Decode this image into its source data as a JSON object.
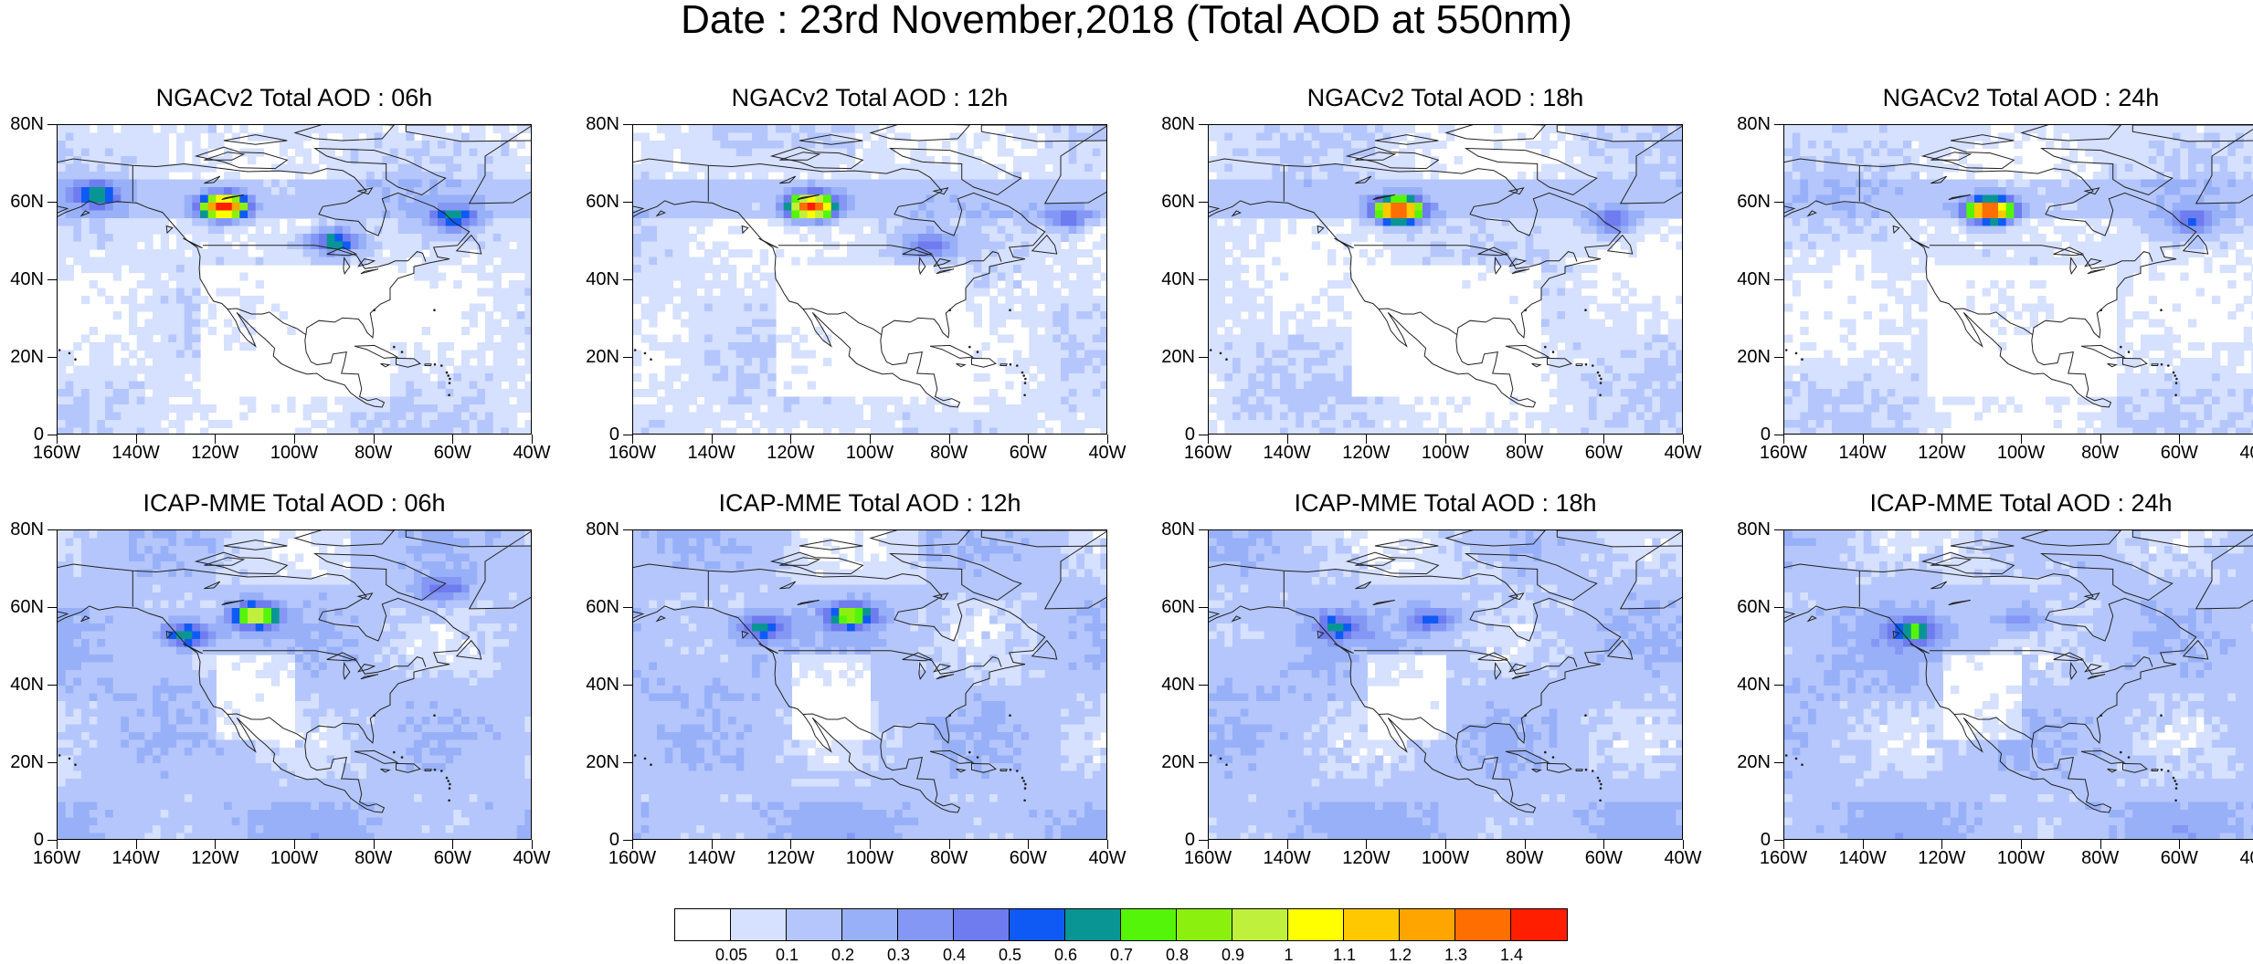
{
  "title": "Date : 23rd November,2018 (Total AOD at 550nm)",
  "lat_labels": [
    "80N",
    "60N",
    "40N",
    "20N",
    "0"
  ],
  "lon_labels": [
    "160W",
    "140W",
    "120W",
    "100W",
    "80W",
    "60W",
    "40W"
  ],
  "panels": [
    {
      "title": "NGACv2 Total AOD : 06h",
      "model": "NGACv2",
      "hour": "06h",
      "plumes": [
        {
          "lon": -118,
          "lat": 59,
          "max_aod": 1.4
        },
        {
          "lon": -90,
          "lat": 50,
          "max_aod": 0.6
        },
        {
          "lon": -60,
          "lat": 56,
          "max_aod": 0.5
        },
        {
          "lon": -150,
          "lat": 62,
          "max_aod": 0.5
        }
      ]
    },
    {
      "title": "NGACv2 Total AOD : 12h",
      "model": "NGACv2",
      "hour": "12h",
      "plumes": [
        {
          "lon": -115,
          "lat": 59,
          "max_aod": 1.4
        },
        {
          "lon": -85,
          "lat": 49,
          "max_aod": 0.4
        },
        {
          "lon": -50,
          "lat": 56,
          "max_aod": 0.4
        }
      ]
    },
    {
      "title": "NGACv2 Total AOD : 18h",
      "model": "NGACv2",
      "hour": "18h",
      "plumes": [
        {
          "lon": -112,
          "lat": 58,
          "max_aod": 1.4
        },
        {
          "lon": -58,
          "lat": 55,
          "max_aod": 0.4
        }
      ]
    },
    {
      "title": "NGACv2 Total AOD : 24h",
      "model": "NGACv2",
      "hour": "24h",
      "plumes": [
        {
          "lon": -108,
          "lat": 58,
          "max_aod": 1.4
        },
        {
          "lon": -57,
          "lat": 55,
          "max_aod": 0.4
        }
      ]
    },
    {
      "title": "ICAP-MME Total AOD : 06h",
      "model": "ICAP-MME",
      "hour": "06h",
      "plumes": [
        {
          "lon": -110,
          "lat": 58,
          "max_aod": 0.9
        },
        {
          "lon": -127,
          "lat": 53,
          "max_aod": 0.6
        },
        {
          "lon": -63,
          "lat": 65,
          "max_aod": 0.4
        }
      ]
    },
    {
      "title": "ICAP-MME Total AOD : 12h",
      "model": "ICAP-MME",
      "hour": "12h",
      "plumes": [
        {
          "lon": -105,
          "lat": 58,
          "max_aod": 0.7
        },
        {
          "lon": -127,
          "lat": 55,
          "max_aod": 0.5
        }
      ]
    },
    {
      "title": "ICAP-MME Total AOD : 18h",
      "model": "ICAP-MME",
      "hour": "18h",
      "plumes": [
        {
          "lon": -103,
          "lat": 57,
          "max_aod": 0.4
        },
        {
          "lon": -127,
          "lat": 55,
          "max_aod": 0.4
        }
      ]
    },
    {
      "title": "ICAP-MME Total AOD : 24h",
      "model": "ICAP-MME",
      "hour": "24h",
      "plumes": [
        {
          "lon": -127,
          "lat": 54,
          "max_aod": 0.5
        },
        {
          "lon": -100,
          "lat": 57,
          "max_aod": 0.3
        }
      ]
    }
  ],
  "colorbar": {
    "labels": [
      "0.05",
      "0.1",
      "0.2",
      "0.3",
      "0.4",
      "0.5",
      "0.6",
      "0.7",
      "0.8",
      "0.9",
      "1",
      "1.1",
      "1.2",
      "1.3",
      "1.4"
    ],
    "colors": [
      "#ffffff",
      "#d6e0ff",
      "#b4c6fb",
      "#98b0f8",
      "#8497f4",
      "#6e7cef",
      "#0f5af5",
      "#0a9595",
      "#55f50a",
      "#8cf00f",
      "#bff03c",
      "#ffff00",
      "#ffc800",
      "#ffa500",
      "#ff6e00",
      "#ff1e00"
    ]
  }
}
